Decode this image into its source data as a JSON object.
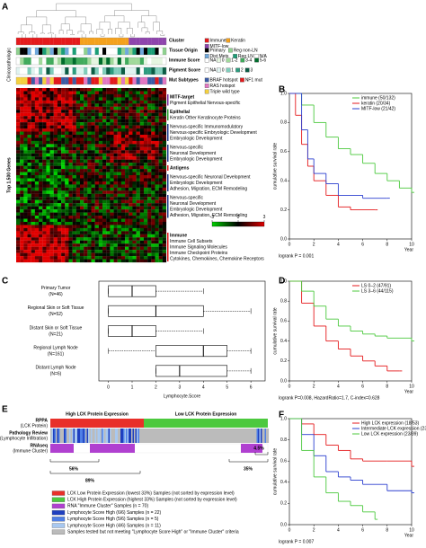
{
  "panel_labels": [
    "A",
    "B",
    "C",
    "D",
    "E",
    "F"
  ],
  "panel_a": {
    "side_labels": [
      "Clinicopathologic",
      "Top 1,500 Genes"
    ],
    "annotations": [
      {
        "title": "Cluster",
        "items": [
          {
            "label": "Immune",
            "color": "#e41a1c"
          },
          {
            "label": "Keratin",
            "color": "#f4a11d"
          },
          {
            "label": "MITF-low",
            "color": "#8e44ad"
          }
        ]
      },
      {
        "title": "Tissue Origin",
        "items": [
          {
            "label": "Primary",
            "color": "#000000"
          },
          {
            "label": "Reg non-LN",
            "color": "#8fd18f"
          },
          {
            "label": "Dist Mets",
            "color": "#6fa8dc"
          },
          {
            "label": "Reg LN",
            "color": "#1b9e77"
          },
          {
            "label": "N/A",
            "color": "#ffffff"
          }
        ]
      },
      {
        "title": "Immune Score",
        "items": [
          {
            "label": "NA",
            "color": "#ffffff"
          },
          {
            "label": "0",
            "color": "#e5f5e0"
          },
          {
            "label": "1-2",
            "color": "#a1d99b"
          },
          {
            "label": "3-4",
            "color": "#41ab5d"
          },
          {
            "label": "5-6",
            "color": "#006d2c"
          }
        ]
      },
      {
        "title": "Pigment Score",
        "items": [
          {
            "label": "NA",
            "color": "#ffffff"
          },
          {
            "label": "0",
            "color": "#e0f3f0"
          },
          {
            "label": "1",
            "color": "#7fcdbb"
          },
          {
            "label": "2",
            "color": "#2c9c7f"
          },
          {
            "label": "3",
            "color": "#0b5d45"
          }
        ]
      },
      {
        "title": "Mut Subtypes",
        "items": [
          {
            "label": "BRAF hotspot",
            "color": "#3b5ba5"
          },
          {
            "label": "NF1 mut",
            "color": "#e31a1c"
          },
          {
            "label": "RAS hotspot",
            "color": "#e377c2"
          },
          {
            "label": "Triple wild type",
            "color": "#f4d03f"
          }
        ]
      }
    ],
    "gene_groups": [
      {
        "title": "MITF-target",
        "color": "#7b2fa0",
        "lines": [
          "Pigment Epithelial Nervous-specific"
        ]
      },
      {
        "title": "Epithelial",
        "color": "#2ca02c",
        "lines": [
          "Keratin Other Keratinocyte Proteins"
        ]
      },
      {
        "color": "#1f3b8f",
        "lines": [
          "Nervous-specific Immunomodulatory",
          "Nervous-specific Embryologic Development",
          "Embryologic Development"
        ]
      },
      {
        "color": "#1f3b8f",
        "lines": [
          "Nervous-specific",
          "Neuronal Development",
          "Embryologic Development"
        ]
      },
      {
        "title": "Antigens",
        "color": "#e41a1c"
      },
      {
        "color": "#1f3b8f",
        "lines": [
          "Nervous-specific Neuronal Development",
          "Embryologic Development",
          "Adhesion, Migration, ECM Remodeling"
        ]
      },
      {
        "color": "#1f3b8f",
        "lines": [
          "Nervous-specific",
          "Neuronal Development",
          "Embryologic Development",
          "Adhesion, Migration, ECM Remodeling"
        ]
      },
      {
        "title": "Immune",
        "color": "#e41a1c",
        "lines": [
          "Immune Cell Subsets",
          "Immune Signaling Molecules",
          "Immune Checkpoint Proteins",
          "Cytokines, Chemokines, Chemokine Receptors"
        ]
      }
    ],
    "scale_ticks": [
      -3,
      0,
      3
    ]
  },
  "chart_data": [
    {
      "type": "km",
      "ylabel": "cumulative survival rate",
      "xlabel": "Year",
      "xlim": [
        0,
        10
      ],
      "ylim": [
        0,
        1
      ],
      "xticks": [
        0,
        2,
        4,
        6,
        8,
        10
      ],
      "yticks": [
        {
          "value": 0,
          "label": "0.0"
        },
        {
          "value": 0.2,
          "label": "0.2"
        },
        {
          "value": 0.4,
          "label": "0.4"
        },
        {
          "value": 0.6,
          "label": "0.6"
        },
        {
          "value": 0.8,
          "label": "0.8"
        },
        {
          "value": 1,
          "label": "1.0"
        }
      ],
      "legend": "upper right",
      "annotation": "logrank P = 0.001",
      "series": [
        {
          "name": "immune (50/132)",
          "color": "#4cc93e",
          "x": [
            0,
            1,
            2,
            3,
            4,
            5,
            6,
            7,
            8,
            9,
            10
          ],
          "values": [
            1,
            0.92,
            0.8,
            0.7,
            0.62,
            0.58,
            0.52,
            0.45,
            0.4,
            0.35,
            0.32
          ]
        },
        {
          "name": "keratin (20/34)",
          "color": "#e41a1c",
          "x": [
            0,
            0.5,
            1,
            1.5,
            2,
            3,
            4,
            5,
            7
          ],
          "values": [
            1,
            0.85,
            0.65,
            0.5,
            0.4,
            0.3,
            0.22,
            0.2,
            0.2
          ]
        },
        {
          "name": "MITF-low (21/42)",
          "color": "#2b3fcf",
          "x": [
            0,
            1,
            1.5,
            2,
            3,
            4,
            6,
            8
          ],
          "values": [
            1,
            0.75,
            0.55,
            0.45,
            0.38,
            0.3,
            0.28,
            0.28
          ]
        }
      ]
    },
    {
      "type": "box",
      "categories": [
        "Primary Tumor",
        "Regional Skin or Soft Tissue",
        "Distant Skin or Soft Tissue",
        "Regional Lymph Node",
        "Distant Lymph Node"
      ],
      "counts": [
        "(N=46)",
        "(N=52)",
        "(N=21)",
        "(N=161)",
        "(N=6)"
      ],
      "xlabel": "Lymphocyte.Score",
      "xlim": [
        -0.4,
        6.6
      ],
      "xticks": [
        0,
        1,
        2,
        3,
        4,
        5,
        6
      ],
      "min": [
        0,
        0,
        0,
        0,
        2
      ],
      "q1": [
        0,
        0,
        0,
        2,
        2
      ],
      "median": [
        1,
        2,
        1,
        4,
        3
      ],
      "q3": [
        2,
        4,
        2,
        5,
        5
      ],
      "max": [
        4,
        6,
        4,
        6,
        6
      ]
    },
    {
      "type": "km",
      "ylabel": "cumulative survival rate",
      "xlabel": "Year",
      "xlim": [
        0,
        10
      ],
      "ylim": [
        0,
        1
      ],
      "xticks": [
        0,
        2,
        4,
        6,
        8,
        10
      ],
      "yticks": [
        {
          "value": 0,
          "label": "0.0"
        },
        {
          "value": 0.2,
          "label": "0.2"
        },
        {
          "value": 0.4,
          "label": "0.4"
        },
        {
          "value": 0.6,
          "label": "0.6"
        },
        {
          "value": 0.8,
          "label": "0.8"
        },
        {
          "value": 1,
          "label": "1.0"
        }
      ],
      "legend": "upper right",
      "annotation": "logrank P=0.008, HazardRatio=1.7, C-index=0.628",
      "series": [
        {
          "name": "LS 0–2 (47/91)",
          "color": "#e41a1c",
          "x": [
            0,
            1,
            2,
            3,
            4,
            5,
            6,
            7,
            8,
            9
          ],
          "values": [
            1,
            0.78,
            0.55,
            0.4,
            0.32,
            0.25,
            0.2,
            0.15,
            0.1,
            0.1
          ]
        },
        {
          "name": "LS 3–6 (44/115)",
          "color": "#4cc93e",
          "x": [
            0,
            1,
            2,
            3,
            4,
            5,
            6,
            7,
            8,
            10
          ],
          "values": [
            1,
            0.9,
            0.75,
            0.62,
            0.55,
            0.5,
            0.47,
            0.45,
            0.43,
            0.4
          ]
        }
      ]
    },
    {
      "type": "km",
      "ylabel": "cumulative survival rate",
      "xlabel": "Year",
      "xlim": [
        0,
        10
      ],
      "ylim": [
        0,
        1
      ],
      "xticks": [
        0,
        2,
        4,
        6,
        8,
        10
      ],
      "yticks": [
        {
          "value": 0,
          "label": "0.0"
        },
        {
          "value": 0.2,
          "label": "0.2"
        },
        {
          "value": 0.4,
          "label": "0.4"
        },
        {
          "value": 0.6,
          "label": "0.6"
        },
        {
          "value": 0.8,
          "label": "0.8"
        },
        {
          "value": 1,
          "label": "1.0"
        }
      ],
      "legend": "upper right",
      "annotation": "logrank P = 0.007",
      "series": [
        {
          "name": "High LCK expression (18/53)",
          "color": "#e41a1c",
          "x": [
            0,
            1,
            2,
            3,
            4,
            5,
            6,
            8,
            10
          ],
          "values": [
            1,
            0.95,
            0.85,
            0.75,
            0.7,
            0.62,
            0.6,
            0.6,
            0.55
          ]
        },
        {
          "name": "Intermediate LCK expression (23/84)",
          "color": "#2b3fcf",
          "x": [
            0,
            1,
            2,
            3,
            4,
            5,
            6,
            8,
            10
          ],
          "values": [
            1,
            0.85,
            0.65,
            0.5,
            0.45,
            0.42,
            0.38,
            0.32,
            0.3
          ]
        },
        {
          "name": "Low LCK expression (23/39)",
          "color": "#4cc93e",
          "x": [
            0,
            1,
            2,
            3,
            4,
            5,
            6,
            7
          ],
          "values": [
            1,
            0.7,
            0.45,
            0.3,
            0.22,
            0.18,
            0.12,
            0.05
          ]
        }
      ]
    }
  ],
  "panel_e": {
    "rows": [
      {
        "label": "RPPA",
        "sublabel": "(LCK Protein)"
      },
      {
        "label": "Pathology Review",
        "sublabel": "(Lymphocyte Infiltration)"
      },
      {
        "label": "RNAseq",
        "sublabel": "(Immune Cluster)"
      }
    ],
    "groups": [
      {
        "label": "High LCK Protein Expression",
        "color": "#e8302a"
      },
      {
        "label": "Low LCK Protein Expression",
        "color": "#4cc93e"
      }
    ],
    "percentages": [
      "56%",
      "89%",
      "35%",
      "4.5%"
    ],
    "legend": [
      {
        "label": "LCK Low Protein Expression (lowest 33%) Samples (not sorted by expression level)",
        "color": "#e8302a"
      },
      {
        "label": "LCK High Protein Expression (highest 33%) Samples (not sorted by expression level)",
        "color": "#4cc93e"
      },
      {
        "label": "RNA \"Immune Cluster\" Samples (n = 70)",
        "color": "#b040d0"
      },
      {
        "label": "Lymphocyte Score High (6/6) Samples (n = 22)",
        "color": "#1f3fbf"
      },
      {
        "label": "Lymphocyte Score High (5/6) Samples (n = 5)",
        "color": "#4f7fe6"
      },
      {
        "label": "Lymphocyte Score High (4/6) Samples (n = 11)",
        "color": "#a8c8f0"
      },
      {
        "label": "Samples tested but not meeting \"Lymphocyte Score High\" or \"Immune Cluster\" criteria",
        "color": "#bbbbbb"
      }
    ]
  }
}
